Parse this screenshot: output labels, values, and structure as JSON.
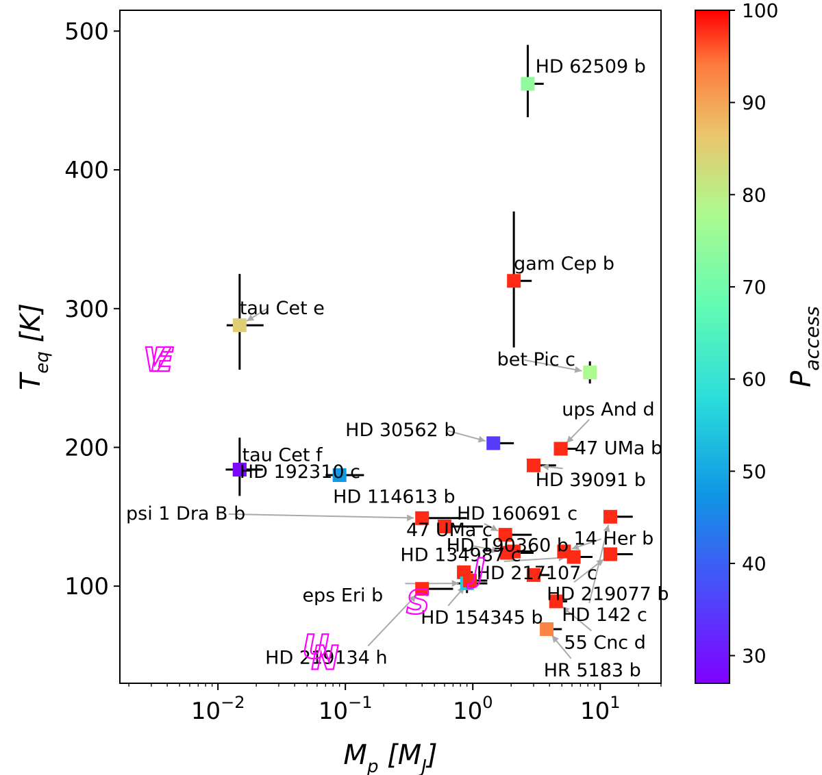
{
  "chart_data": {
    "type": "scatter",
    "xscale": "log",
    "xlim": [
      0.0017,
      30
    ],
    "ylim": [
      30,
      515
    ],
    "xticks": [
      {
        "value": 0.01,
        "base": "10",
        "exp": "−2"
      },
      {
        "value": 0.1,
        "base": "10",
        "exp": "−1"
      },
      {
        "value": 1,
        "base": "10",
        "exp": "0"
      },
      {
        "value": 10,
        "base": "10",
        "exp": "1"
      }
    ],
    "yticks": [
      100,
      200,
      300,
      400,
      500
    ],
    "xlabel": {
      "main": "M",
      "sub": "p",
      "rest": "[M",
      "sub2": "J",
      "close": "]"
    },
    "ylabel": {
      "main": "T",
      "sub": "eq",
      "rest": "[K]"
    },
    "colorbar": {
      "label_main": "P",
      "label_sub": "access",
      "min": 27,
      "max": 100,
      "ticks": [
        30,
        40,
        50,
        60,
        70,
        80,
        90,
        100
      ]
    },
    "points": [
      {
        "name": "HD 62509 b",
        "x": 2.7,
        "y": 462,
        "p": 74,
        "xerr": [
          2.7,
          3.6
        ],
        "yerr": [
          438,
          490
        ],
        "label": "HD 62509 b",
        "lx": 3.1,
        "ly": 470,
        "arrow": false
      },
      {
        "name": "gam Cep b",
        "x": 2.1,
        "y": 320,
        "p": 98,
        "xerr": [
          2.1,
          2.9
        ],
        "yerr": [
          272,
          370
        ],
        "label": "gam Cep b",
        "lx": 2.1,
        "ly": 328,
        "arrow": false
      },
      {
        "name": "tau Cet e",
        "x": 0.0148,
        "y": 288,
        "p": 85,
        "xerr": [
          0.0117,
          0.0228
        ],
        "yerr": [
          256,
          325
        ],
        "label": "tau Cet e",
        "lx": 0.0148,
        "ly": 296,
        "arrow": true
      },
      {
        "name": "bet Pic c",
        "x": 8.3,
        "y": 254,
        "p": 78,
        "xerr": [
          8.2,
          8.5
        ],
        "yerr": [
          246,
          262
        ],
        "label": "bet Pic c",
        "lx": 1.55,
        "ly": 259,
        "arrow": true
      },
      {
        "name": "HD 30562 b",
        "x": 1.45,
        "y": 203,
        "p": 35,
        "xerr": [
          1.45,
          2.1
        ],
        "yerr": [
          203,
          203
        ],
        "label": "HD 30562 b",
        "lx": 0.1,
        "ly": 208,
        "arrow": true
      },
      {
        "name": "ups And d",
        "x": 4.9,
        "y": 199,
        "p": 98,
        "xerr": [
          4.7,
          6.6
        ],
        "yerr": [
          199,
          199
        ],
        "label": "ups And d",
        "lx": 5.0,
        "ly": 223,
        "arrow": true
      },
      {
        "name": "47 UMa b",
        "x": 4.9,
        "y": 199,
        "p": 98,
        "xerr": [
          4.9,
          6.6
        ],
        "yerr": [
          199,
          199
        ],
        "label": "47 UMa b",
        "lx": 6.3,
        "ly": 195,
        "arrow": false
      },
      {
        "name": "HD 39091 b",
        "x": 3.0,
        "y": 187,
        "p": 98,
        "xerr": [
          3.0,
          4.5
        ],
        "yerr": [
          187,
          187
        ],
        "label": "HD 39091 b",
        "lx": 3.1,
        "ly": 172,
        "arrow": true
      },
      {
        "name": "tau Cet f",
        "x": 0.0148,
        "y": 184,
        "p": 28,
        "xerr": [
          0.0115,
          0.0225
        ],
        "yerr": [
          165,
          207
        ],
        "label": "tau Cet f",
        "lx": 0.0155,
        "ly": 190,
        "arrow": false
      },
      {
        "name": "HD 192310 c",
        "x": 0.0148,
        "y": 184,
        "p": 28,
        "xerr": [
          0.0148,
          0.022
        ],
        "yerr": [
          184,
          184
        ],
        "label": "HD 192310 c",
        "lx": 0.0148,
        "ly": 178,
        "arrow": false
      },
      {
        "name": "HD 114613 b",
        "x": 0.09,
        "y": 180,
        "p": 48,
        "xerr": [
          0.07,
          0.14
        ],
        "yerr": [
          180,
          180
        ],
        "label": "HD 114613 b",
        "lx": 0.08,
        "ly": 160,
        "arrow": false
      },
      {
        "name": "psi 1 Dra B b",
        "x": 0.4,
        "y": 149,
        "p": 98,
        "xerr": [
          0.4,
          0.9
        ],
        "yerr": [
          149,
          149
        ],
        "label": "psi 1 Dra B b",
        "lx": 0.0019,
        "ly": 148,
        "arrow": true
      },
      {
        "name": "HD 160691 c",
        "x": 1.8,
        "y": 137,
        "p": 98,
        "xerr": [
          1.8,
          2.9
        ],
        "yerr": [
          137,
          137
        ],
        "label": "HD 160691 c",
        "lx": 0.75,
        "ly": 148,
        "arrow": true
      },
      {
        "name": "47 UMa c",
        "x": 0.6,
        "y": 143,
        "p": 98,
        "xerr": [
          0.6,
          1.2
        ],
        "yerr": [
          143,
          143
        ],
        "label": "47 UMa c",
        "lx": 0.3,
        "ly": 136,
        "arrow": false
      },
      {
        "name": "HD 190360 b",
        "x": 1.85,
        "y": 124,
        "p": 98,
        "xerr": [
          1.85,
          3.0
        ],
        "yerr": [
          124,
          124
        ],
        "label": "HD 190360 b",
        "lx": 0.62,
        "ly": 125,
        "arrow": true
      },
      {
        "name": "HD 134987 c",
        "x": 2.1,
        "y": 125,
        "p": 98,
        "xerr": [
          2.1,
          3.0
        ],
        "yerr": [
          125,
          125
        ],
        "label": "HD 134987 c",
        "lx": 0.27,
        "ly": 118,
        "arrow": true
      },
      {
        "name": "14 Her b",
        "x": 5.2,
        "y": 125,
        "p": 98,
        "xerr": [
          5.2,
          7.0
        ],
        "yerr": [
          125,
          125
        ],
        "label": "14 Her b",
        "lx": 6.2,
        "ly": 130,
        "arrow": true
      },
      {
        "name": "HD 142 c",
        "x": 12,
        "y": 150,
        "p": 98,
        "xerr": [
          12,
          18
        ],
        "yerr": [
          150,
          150
        ],
        "label": "HD 142 c",
        "lx": 5.0,
        "ly": 75,
        "arrow": true
      },
      {
        "name": "HD 217107 c",
        "x": 6.2,
        "y": 121,
        "p": 98,
        "xerr": [
          6.2,
          8.7
        ],
        "yerr": [
          121,
          121
        ],
        "label": "HD 217107 c",
        "lx": 1.07,
        "ly": 105,
        "arrow": true
      },
      {
        "name": "HD 219077 b",
        "x": 12,
        "y": 123,
        "p": 98,
        "xerr": [
          12,
          18
        ],
        "yerr": [
          123,
          123
        ],
        "label": "HD 219077 b",
        "lx": 3.8,
        "ly": 90,
        "arrow": true
      },
      {
        "name": "unlabeled-a",
        "x": 3.0,
        "y": 108,
        "p": 98,
        "xerr": [
          3.0,
          4.0
        ],
        "yerr": [
          108,
          108
        ],
        "label": "",
        "lx": 0,
        "ly": 0,
        "arrow": false
      },
      {
        "name": "unlabeled-b",
        "x": 0.85,
        "y": 110,
        "p": 98,
        "xerr": [
          0.85,
          1.0
        ],
        "yerr": [
          110,
          110
        ],
        "label": "",
        "lx": 0,
        "ly": 0,
        "arrow": false
      },
      {
        "name": "eps Eri b",
        "x": 0.9,
        "y": 102,
        "p": 55,
        "xerr": [
          0.75,
          1.3
        ],
        "yerr": [
          95,
          108
        ],
        "label": "eps Eri b",
        "lx": 0.046,
        "ly": 89,
        "arrow": true
      },
      {
        "name": "HD 219134 h",
        "x": 0.4,
        "y": 98,
        "p": 98,
        "xerr": [
          0.4,
          0.7
        ],
        "yerr": [
          98,
          98
        ],
        "label": "HD 219134 h",
        "lx": 0.0235,
        "ly": 44,
        "arrow": true
      },
      {
        "name": "HD 154345 b",
        "x": 0.95,
        "y": 104,
        "p": 98,
        "xerr": [
          0.95,
          1.3
        ],
        "yerr": [
          104,
          104
        ],
        "label": "HD 154345 b",
        "lx": 0.39,
        "ly": 73,
        "arrow": true
      },
      {
        "name": "55 Cnc d",
        "x": 4.5,
        "y": 89,
        "p": 98,
        "xerr": [
          4.5,
          5.5
        ],
        "yerr": [
          89,
          89
        ],
        "label": "55 Cnc d",
        "lx": 5.2,
        "ly": 55,
        "arrow": true
      },
      {
        "name": "HR 5183 b",
        "x": 3.8,
        "y": 69,
        "p": 93,
        "xerr": [
          3.8,
          5.0
        ],
        "yerr": [
          69,
          69
        ],
        "label": "HR 5183 b",
        "lx": 3.6,
        "ly": 35,
        "arrow": true
      }
    ],
    "solar_system": [
      {
        "letter": "V",
        "x": 0.0026,
        "y": 255
      },
      {
        "letter": "E",
        "x": 0.003,
        "y": 255
      },
      {
        "letter": "S",
        "x": 0.3,
        "y": 80
      },
      {
        "letter": "J",
        "x": 1.0,
        "y": 103
      },
      {
        "letter": "U",
        "x": 0.046,
        "y": 48
      },
      {
        "letter": "N",
        "x": 0.054,
        "y": 40
      }
    ]
  }
}
